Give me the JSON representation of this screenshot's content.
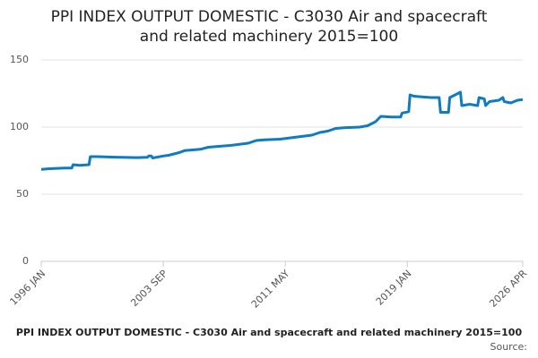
{
  "chart_data": {
    "type": "line",
    "title": [
      "PPI INDEX OUTPUT DOMESTIC - C3030 Air and spacecraft",
      "and related machinery 2015=100"
    ],
    "footer": "PPI INDEX OUTPUT DOMESTIC - C3030 Air and spacecraft and related machinery 2015=100",
    "source": "Source:",
    "x": [
      "1996 JAN",
      "1996 JUL",
      "1997 JAN",
      "1997 JUL",
      "1997 DEC",
      "1998 JAN",
      "1998 JUN",
      "1999 JAN",
      "1999 FEB",
      "1999 JUL",
      "2000 JAN",
      "2001 JAN",
      "2002 JAN",
      "2002 SEP",
      "2002 OCT",
      "2002 DEC",
      "2003 JAN",
      "2003 SEP",
      "2004 JAN",
      "2004 SEP",
      "2005 JAN",
      "2006 JAN",
      "2006 JUL",
      "2007 JAN",
      "2008 JAN",
      "2009 JAN",
      "2009 JUL",
      "2010 JAN",
      "2011 JAN",
      "2011 MAY",
      "2012 JAN",
      "2013 JAN",
      "2013 JUL",
      "2014 JAN",
      "2014 JUL",
      "2015 JAN",
      "2016 JAN",
      "2016 JUL",
      "2017 JAN",
      "2017 MAY",
      "2018 JAN",
      "2018 AUG",
      "2018 SEP",
      "2019 FEB",
      "2019 MAR",
      "2019 JUN",
      "2019 DEC",
      "2020 JUL",
      "2021 JAN",
      "2021 FEB",
      "2021 AUG",
      "2021 SEP",
      "2022 JAN",
      "2022 MAY",
      "2022 JUN",
      "2022 DEC",
      "2023 JUN",
      "2023 JUL",
      "2023 NOV",
      "2023 DEC",
      "2024 MAR",
      "2024 OCT",
      "2025 JAN",
      "2025 FEB",
      "2025 JUL",
      "2025 DEC",
      "2026 APR"
    ],
    "series": [
      {
        "color": "#0f7bc0",
        "values": [
          68.5,
          69,
          69.3,
          69.5,
          69.5,
          72,
          71.5,
          72,
          78,
          78,
          77.8,
          77.5,
          77.3,
          77.5,
          78.5,
          78.5,
          77,
          78.5,
          79,
          81,
          82.5,
          83.5,
          85,
          85.5,
          86.5,
          88,
          90,
          90.5,
          91,
          91.5,
          92.5,
          94,
          96,
          97,
          99,
          99.5,
          100,
          101,
          104,
          108,
          107.5,
          107.5,
          110.5,
          111.5,
          124,
          123,
          122.5,
          122,
          122,
          111,
          111,
          122,
          124,
          126,
          116,
          117,
          116,
          122,
          121,
          116,
          119,
          120,
          122,
          119,
          118,
          120,
          120.5
        ]
      }
    ],
    "xticks": [
      "1996 JAN",
      "2003 SEP",
      "2011 MAY",
      "2019 JAN",
      "2026 APR"
    ],
    "ylim": [
      0,
      150
    ],
    "yticks": [
      0,
      50,
      100,
      150
    ],
    "grid": true
  }
}
